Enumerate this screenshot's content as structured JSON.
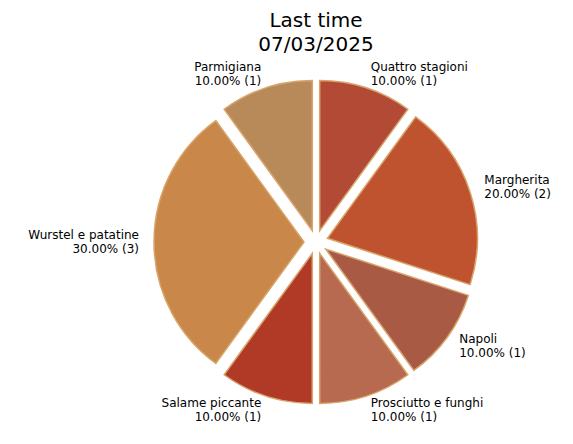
{
  "chart_data": {
    "type": "pie",
    "title": "Last time",
    "subtitle": "07/03/2025",
    "categories": [
      "Quattro stagioni",
      "Margherita",
      "Napoli",
      "Prosciutto e funghi",
      "Salame piccante",
      "Wurstel e patatine",
      "Parmigiana"
    ],
    "values": [
      10,
      20,
      10,
      10,
      10,
      30,
      10
    ],
    "counts": [
      1,
      2,
      1,
      1,
      1,
      3,
      1
    ],
    "value_labels": [
      "10.00% (1)",
      "20.00% (2)",
      "10.00% (1)",
      "10.00% (1)",
      "10.00% (1)",
      "30.00% (3)",
      "10.00% (1)"
    ],
    "colors": [
      "#b24a35",
      "#c0532f",
      "#a85a45",
      "#b86a50",
      "#b03a25",
      "#c9874a",
      "#b88a5a"
    ],
    "data_labels": true
  }
}
